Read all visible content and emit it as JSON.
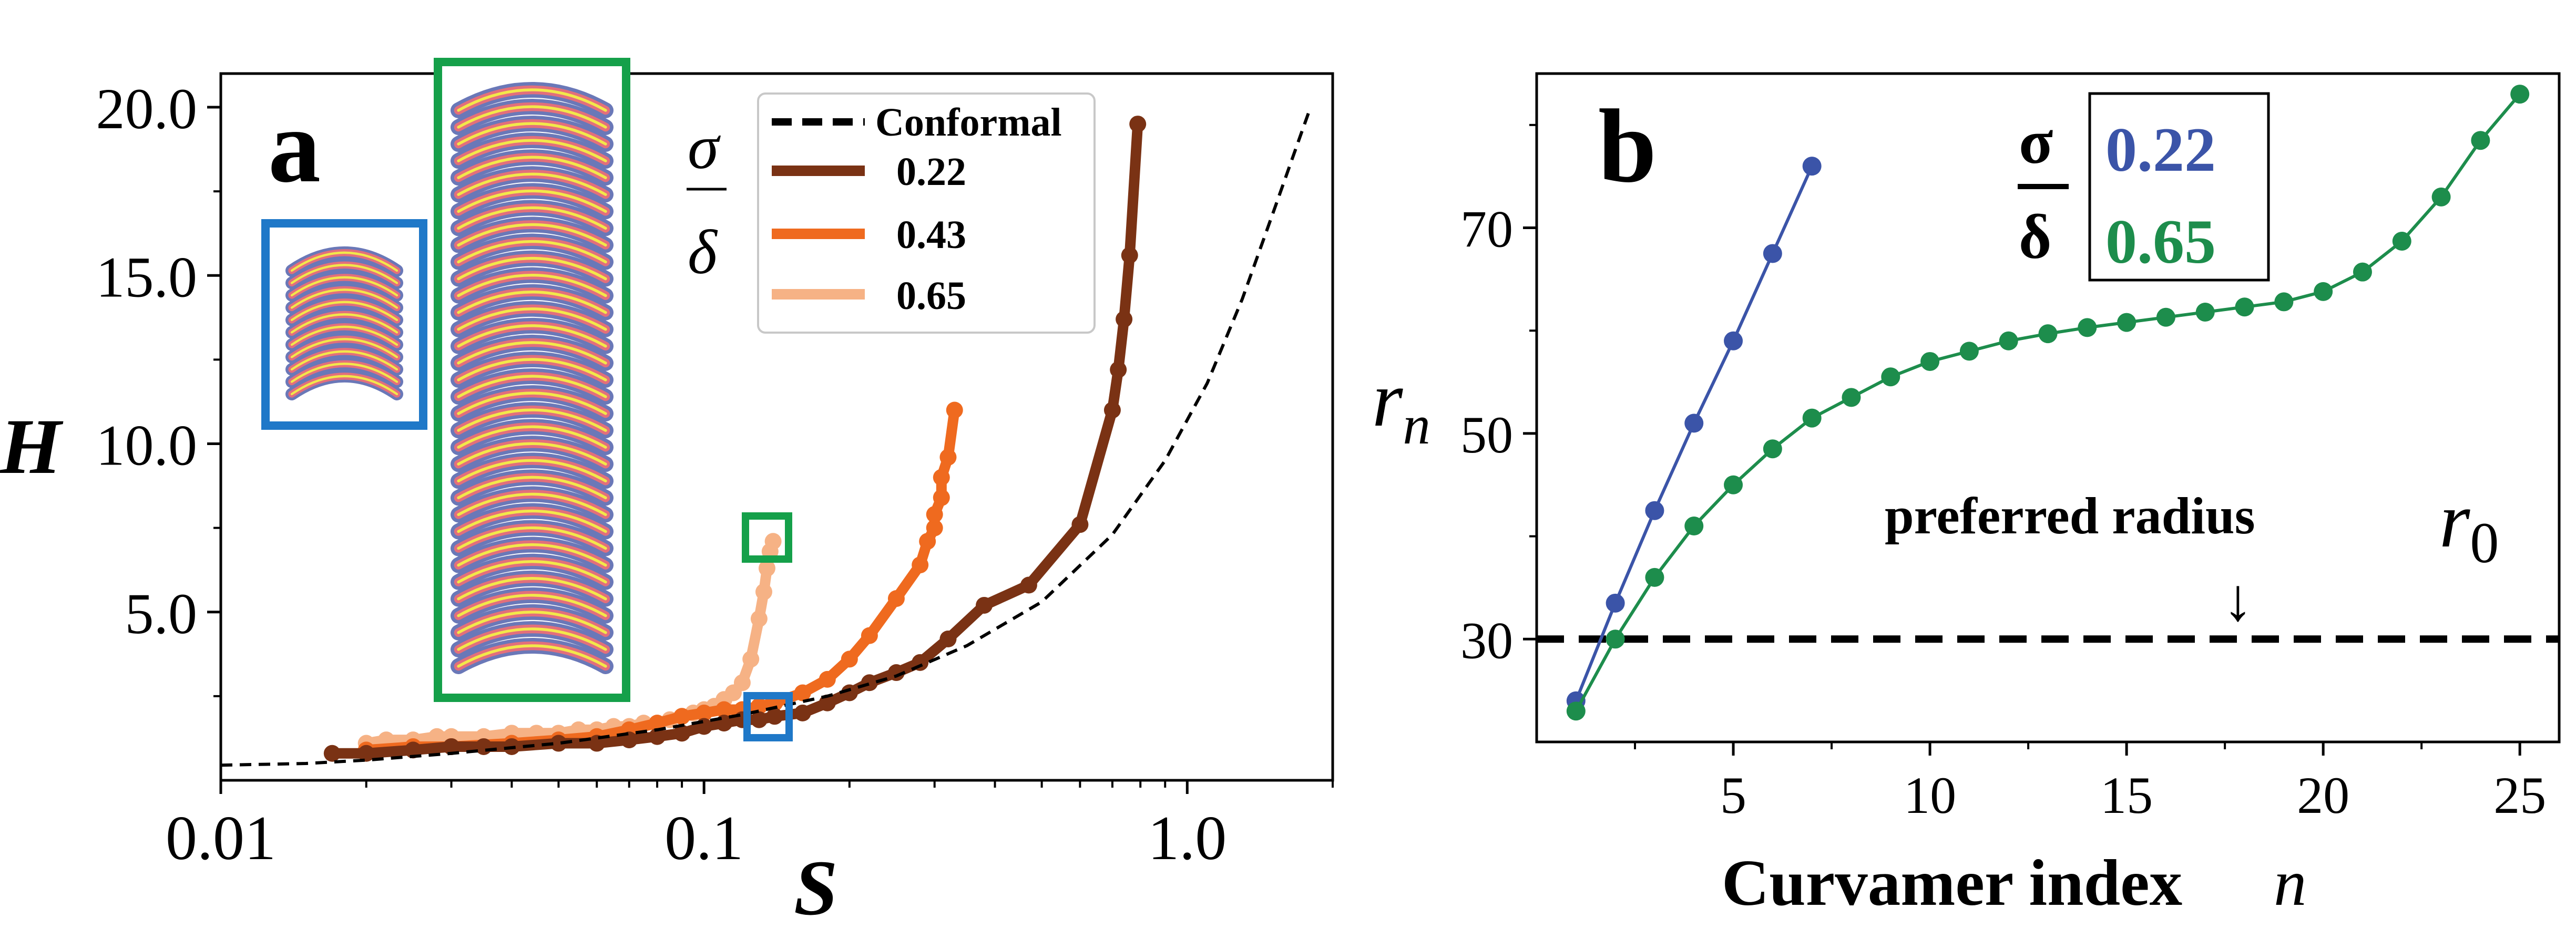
{
  "colors": {
    "series_022": "#7a3214",
    "series_043": "#ef6a1f",
    "series_065": "#f6b285",
    "conformal": "#000000",
    "blue_box": "#1f78c8",
    "green_box": "#15a04a",
    "b_blue": "#3b54a8",
    "b_green": "#1d8d4c",
    "curvamer_purple": "#6a78b8",
    "curvamer_pink": "#e36f7b",
    "curvamer_yellow": "#f2e84a"
  },
  "chart_data": [
    {
      "panel_label": "a",
      "type": "line",
      "xscale": "log",
      "xlim": [
        0.01,
        2.0
      ],
      "ylim": [
        0.0,
        21.0
      ],
      "xticks": [
        0.01,
        0.1,
        1.0
      ],
      "xtick_labels": [
        "0.01",
        "0.1",
        "1.0"
      ],
      "yticks": [
        5.0,
        10.0,
        15.0,
        20.0
      ],
      "ytick_labels": [
        "5.0",
        "10.0",
        "15.0",
        "20.0"
      ],
      "xlabel": "S",
      "ylabel": "H",
      "legend_title_num": "σ",
      "legend_title_den": "δ",
      "legend_position": "top-center",
      "legend": [
        "Conformal",
        "0.22",
        "0.43",
        "0.65"
      ],
      "series": [
        {
          "name": "Conformal",
          "style": "dashed",
          "x": [
            0.01,
            0.015,
            0.02,
            0.03,
            0.05,
            0.08,
            0.12,
            0.18,
            0.25,
            0.35,
            0.5,
            0.7,
            0.9,
            1.1,
            1.3,
            1.5,
            1.7,
            1.8
          ],
          "y": [
            0.45,
            0.5,
            0.6,
            0.8,
            1.1,
            1.5,
            1.95,
            2.5,
            3.1,
            4.0,
            5.3,
            7.3,
            9.5,
            11.8,
            14.3,
            16.8,
            19.0,
            20.0
          ]
        },
        {
          "name": "0.22",
          "x": [
            0.017,
            0.02,
            0.025,
            0.03,
            0.035,
            0.04,
            0.05,
            0.06,
            0.07,
            0.08,
            0.09,
            0.1,
            0.11,
            0.12,
            0.13,
            0.14,
            0.16,
            0.18,
            0.2,
            0.22,
            0.25,
            0.28,
            0.32,
            0.38,
            0.47,
            0.6,
            0.7,
            0.72,
            0.74,
            0.76,
            0.79
          ],
          "y": [
            0.8,
            0.8,
            0.9,
            1.0,
            1.0,
            1.0,
            1.1,
            1.1,
            1.2,
            1.3,
            1.4,
            1.6,
            1.7,
            1.8,
            1.8,
            1.9,
            2.0,
            2.3,
            2.6,
            2.9,
            3.2,
            3.5,
            4.2,
            5.2,
            5.8,
            7.6,
            11.0,
            12.2,
            13.7,
            15.6,
            19.5
          ]
        },
        {
          "name": "0.43",
          "x": [
            0.02,
            0.025,
            0.03,
            0.04,
            0.05,
            0.06,
            0.07,
            0.08,
            0.09,
            0.1,
            0.11,
            0.12,
            0.13,
            0.14,
            0.16,
            0.18,
            0.2,
            0.22,
            0.25,
            0.28,
            0.29,
            0.3,
            0.3,
            0.31,
            0.31,
            0.32,
            0.33
          ],
          "y": [
            0.9,
            1.0,
            1.0,
            1.1,
            1.2,
            1.3,
            1.5,
            1.7,
            1.9,
            2.0,
            2.1,
            2.1,
            2.2,
            2.3,
            2.6,
            3.0,
            3.6,
            4.3,
            5.4,
            6.4,
            7.1,
            7.5,
            7.9,
            8.4,
            9.0,
            9.6,
            11.0
          ]
        },
        {
          "name": "0.65",
          "x": [
            0.02,
            0.022,
            0.025,
            0.028,
            0.03,
            0.035,
            0.04,
            0.045,
            0.05,
            0.055,
            0.06,
            0.065,
            0.07,
            0.075,
            0.08,
            0.085,
            0.09,
            0.095,
            0.1,
            0.105,
            0.11,
            0.115,
            0.12,
            0.125,
            0.13,
            0.133,
            0.135,
            0.137,
            0.139
          ],
          "y": [
            1.1,
            1.2,
            1.2,
            1.3,
            1.3,
            1.3,
            1.4,
            1.4,
            1.4,
            1.5,
            1.5,
            1.6,
            1.6,
            1.7,
            1.7,
            1.8,
            1.9,
            2.0,
            2.1,
            2.2,
            2.4,
            2.6,
            2.9,
            3.6,
            4.8,
            5.6,
            6.3,
            6.8,
            7.1
          ]
        }
      ]
    },
    {
      "panel_label": "b",
      "type": "line",
      "xlim": [
        0,
        26
      ],
      "ylim": [
        20,
        85
      ],
      "xticks": [
        5,
        10,
        15,
        20,
        25
      ],
      "xtick_labels": [
        "5",
        "10",
        "15",
        "20",
        "25"
      ],
      "yticks": [
        30,
        50,
        70
      ],
      "ytick_labels": [
        "30",
        "50",
        "70"
      ],
      "xlabel": "Curvamer index",
      "xlabel_var": "n",
      "ylabel": "r",
      "ylabel_sub": "n",
      "legend_title_num": "σ",
      "legend_title_den": "δ",
      "legend": [
        "0.22",
        "0.65"
      ],
      "preferred_label": "preferred radius",
      "preferred_symbol": "r",
      "preferred_symbol_sub": "0",
      "arrow_glyph": "↓",
      "preferred_radius": 30,
      "series": [
        {
          "name": "0.22",
          "x": [
            1,
            2,
            3,
            4,
            5,
            6,
            7
          ],
          "y": [
            24,
            33.5,
            42.5,
            51,
            59,
            67.5,
            76
          ]
        },
        {
          "name": "0.65",
          "x": [
            1,
            2,
            3,
            4,
            5,
            6,
            7,
            8,
            9,
            10,
            11,
            12,
            13,
            14,
            15,
            16,
            17,
            18,
            19,
            20,
            21,
            22,
            23,
            24,
            25
          ],
          "y": [
            23,
            30,
            36,
            41,
            45,
            48.5,
            51.5,
            53.5,
            55.5,
            57,
            58,
            59,
            59.7,
            60.3,
            60.8,
            61.3,
            61.8,
            62.3,
            62.8,
            63.8,
            65.7,
            68.7,
            73,
            78.5,
            83
          ]
        }
      ]
    }
  ]
}
